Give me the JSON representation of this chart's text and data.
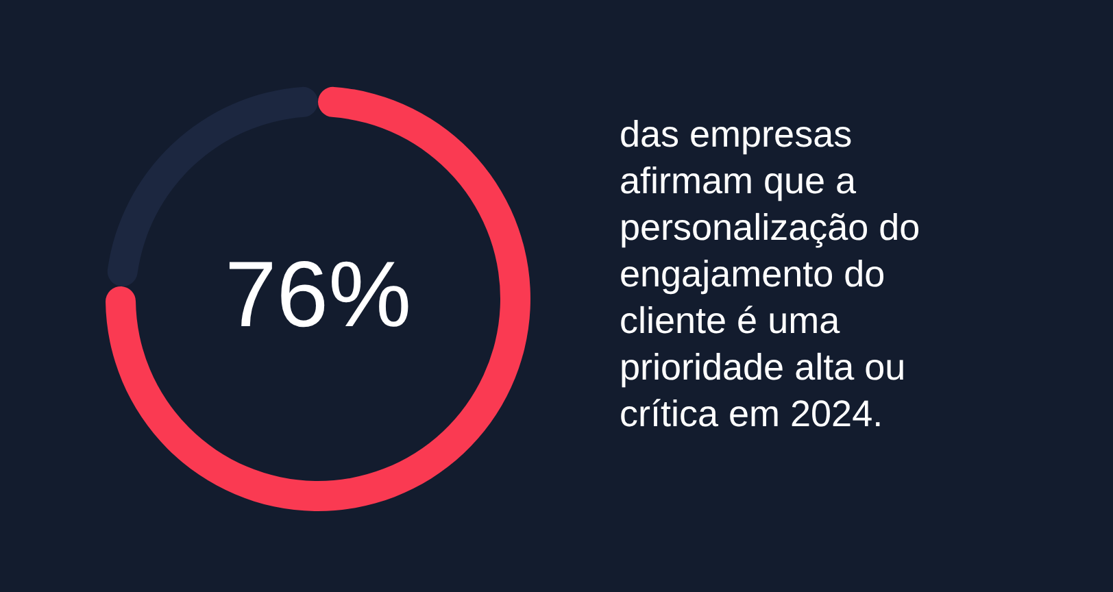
{
  "chart_data": {
    "type": "donut",
    "categories": [
      null,
      null
    ],
    "values": [
      76,
      24
    ],
    "colors": [
      "#fa3a52",
      "#1c2740"
    ],
    "value_labels": [
      "76%",
      null
    ],
    "annotations": [
      "das empresas\nafirmam que a\npersonalização do\nengajamento do\ncliente é uma\nprioridade alta ou\ncrítica em 2024."
    ]
  }
}
